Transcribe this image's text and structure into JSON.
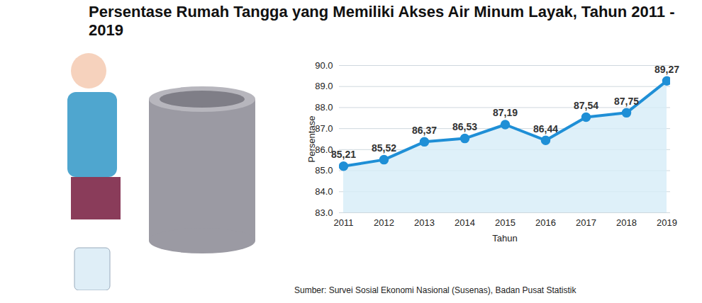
{
  "chart_data": {
    "type": "line",
    "title": "Persentase Rumah Tangga yang Memiliki Akses Air Minum Layak, Tahun 2011 - 2019",
    "caption": "Sumber: Survei Sosial Ekonomi Nasional (Susenas), Badan Pusat Statistik",
    "x_label": "Tahun",
    "y_label": "Persentase",
    "categories": [
      "2011",
      "2012",
      "2013",
      "2014",
      "2015",
      "2016",
      "2017",
      "2018",
      "2019"
    ],
    "values": [
      85.21,
      85.52,
      86.37,
      86.53,
      87.19,
      86.44,
      87.54,
      87.75,
      89.27
    ],
    "value_labels": [
      "85,21",
      "85,52",
      "86,37",
      "86,53",
      "87,19",
      "86,44",
      "87,54",
      "87,75",
      "89,27"
    ],
    "color": "#1f8fd6",
    "marker": "circle",
    "data_labels": true,
    "ylim": [
      83,
      90
    ],
    "yticks": [
      83,
      84,
      85,
      86,
      87,
      88,
      89,
      90
    ],
    "grid": true
  }
}
